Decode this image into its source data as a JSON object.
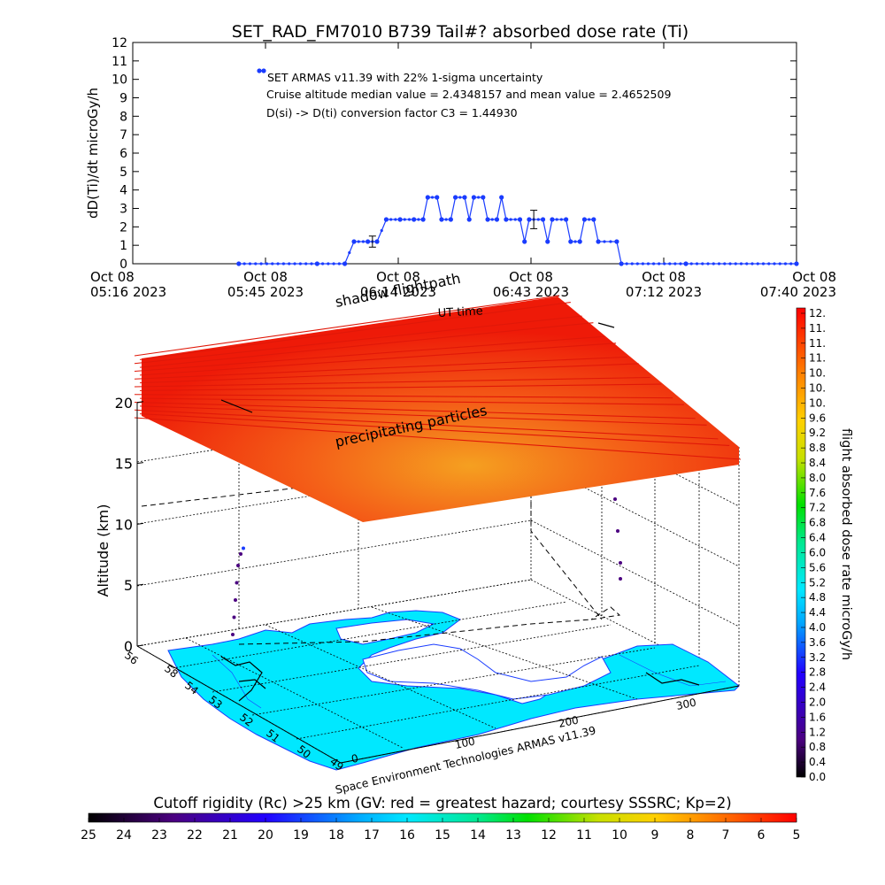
{
  "timeseries": {
    "title": "SET_RAD_FM7010  B739 Tail#? absorbed dose rate (Ti)",
    "ylabel": "dD(Ti)/dt microGy/h",
    "notes": [
      "SET ARMAS v11.39 with 22% 1-sigma uncertainty",
      "Cruise altitude median value = 2.4348157 and mean value = 2.4652509",
      "D(si) -> D(ti) conversion factor C3 = 1.44930"
    ],
    "xticks_top": [
      "Oct 08",
      "Oct 08",
      "Oct 08",
      "Oct 08",
      "Oct 08",
      "Oct 08"
    ],
    "xticks_bottom": [
      "05:16 2023",
      "05:45 2023",
      "06:14 2023",
      "06:43 2023",
      "07:12 2023",
      "07:40 2023"
    ]
  },
  "globe": {
    "shadow_label": "shadow flightpath",
    "ut_label": "UT time",
    "precip_label": "precipitating particles",
    "zlabel": "Altitude (km)",
    "zticks": [
      "0",
      "5",
      "10",
      "15",
      "20"
    ],
    "lat_ticks": [
      "56",
      "58",
      "54",
      "53",
      "52",
      "51",
      "50",
      "49"
    ],
    "lon_ticks": [
      "0",
      "100",
      "200",
      "300"
    ],
    "credit": "Space Environment Technologies ARMAS v11.39"
  },
  "colorbar_right": {
    "label": "flight absorbed dose rate microGy/h",
    "ticks": [
      "12.",
      "11.",
      "11.",
      "11.",
      "10.",
      "10.",
      "10.",
      "9.6",
      "9.2",
      "8.8",
      "8.4",
      "8.0",
      "7.6",
      "7.2",
      "6.8",
      "6.4",
      "6.0",
      "5.6",
      "5.2",
      "4.8",
      "4.4",
      "4.0",
      "3.6",
      "3.2",
      "2.8",
      "2.4",
      "2.0",
      "1.6",
      "1.2",
      "0.8",
      "0.4",
      "0.0"
    ]
  },
  "colorbar_bottom": {
    "title": "Cutoff rigidity (Rc) >25 km (GV: red = greatest hazard; courtesy SSSRC; Kp=2)",
    "ticks": [
      "25",
      "24",
      "23",
      "22",
      "21",
      "20",
      "19",
      "18",
      "17",
      "16",
      "15",
      "14",
      "13",
      "12",
      "11",
      "10",
      "9",
      "8",
      "7",
      "6",
      "5"
    ]
  },
  "chart_data": [
    {
      "type": "line",
      "title": "SET_RAD_FM7010  B739 Tail#? absorbed dose rate (Ti)",
      "xlabel": "",
      "ylabel": "dD(Ti)/dt microGy/h",
      "x_unit": "minutes after 05:16 UT, Oct 08 2023",
      "xlim": [
        0,
        144
      ],
      "ylim": [
        0,
        12
      ],
      "grid": false,
      "series": [
        {
          "color": "#1a3cff",
          "points": [
            [
              23,
              0
            ],
            [
              40,
              0
            ],
            [
              46,
              0
            ],
            [
              48,
              1.2
            ],
            [
              51,
              1.2
            ],
            [
              53,
              1.2
            ],
            [
              55,
              2.4
            ],
            [
              58,
              2.4
            ],
            [
              61,
              2.4
            ],
            [
              63,
              2.4
            ],
            [
              64,
              3.6
            ],
            [
              66,
              3.6
            ],
            [
              67,
              2.4
            ],
            [
              69,
              2.4
            ],
            [
              70,
              3.6
            ],
            [
              72,
              3.6
            ],
            [
              73,
              2.4
            ],
            [
              74,
              3.6
            ],
            [
              76,
              3.6
            ],
            [
              77,
              2.4
            ],
            [
              79,
              2.4
            ],
            [
              80,
              3.6
            ],
            [
              81,
              2.4
            ],
            [
              84,
              2.4
            ],
            [
              85,
              1.2
            ],
            [
              86,
              2.4
            ],
            [
              89,
              2.4
            ],
            [
              90,
              1.2
            ],
            [
              91,
              2.4
            ],
            [
              94,
              2.4
            ],
            [
              95,
              1.2
            ],
            [
              97,
              1.2
            ],
            [
              98,
              2.4
            ],
            [
              100,
              2.4
            ],
            [
              101,
              1.2
            ],
            [
              105,
              1.2
            ],
            [
              106,
              0
            ],
            [
              120,
              0
            ],
            [
              144,
              0
            ]
          ]
        }
      ],
      "error_bars": [
        [
          52,
          1.2,
          0.3
        ],
        [
          87,
          2.4,
          0.5
        ]
      ],
      "legend_marker": "top-left"
    },
    {
      "type": "scatter",
      "title": "",
      "zlabel": "Altitude (km)",
      "zlim": [
        0,
        22
      ],
      "series": [
        {
          "name": "",
          "points": [
            [
              20,
              8.5
            ],
            [
              18,
              8.0
            ],
            [
              16,
              7.0
            ],
            [
              15,
              5.5
            ],
            [
              14,
              4.0
            ],
            [
              13,
              2.5
            ],
            [
              12,
              1.0
            ],
            [
              15,
              10.5
            ],
            [
              22,
              10.6
            ],
            [
              30,
              10.8
            ],
            [
              40,
              11.0
            ],
            [
              48,
              11.5
            ],
            [
              56,
              12.0
            ],
            [
              60,
              12.5
            ],
            [
              62,
              13.0
            ],
            [
              63,
              12.0
            ],
            [
              64,
              10.0
            ],
            [
              65,
              8.0
            ],
            [
              66,
              5.0
            ],
            [
              67,
              2.0
            ],
            [
              67,
              0.5
            ]
          ]
        }
      ]
    }
  ]
}
